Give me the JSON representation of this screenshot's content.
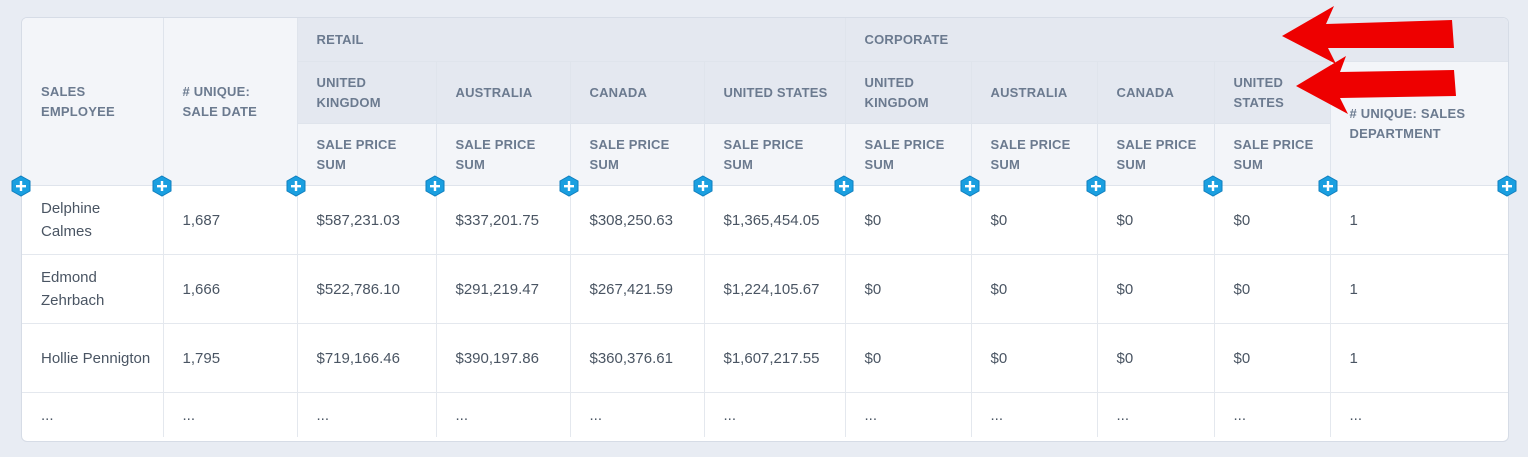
{
  "header": {
    "row_header_1": "SALES EMPLOYEE",
    "row_header_2": "# UNIQUE: SALE DATE",
    "group_retail": "RETAIL",
    "group_corporate": "CORPORATE",
    "countries": [
      "UNITED KINGDOM",
      "AUSTRALIA",
      "CANADA",
      "UNITED STATES",
      "UNITED KINGDOM",
      "AUSTRALIA",
      "CANADA",
      "UNITED STATES"
    ],
    "measure": "SALE PRICE SUM",
    "last_column": "# UNIQUE: SALES DEPARTMENT"
  },
  "rows": [
    {
      "employee": "Delphine Calmes",
      "unique": "1,687",
      "values": [
        "$587,231.03",
        "$337,201.75",
        "$308,250.63",
        "$1,365,454.05",
        "$0",
        "$0",
        "$0",
        "$0"
      ],
      "dept": "1"
    },
    {
      "employee": "Edmond Zehrbach",
      "unique": "1,666",
      "values": [
        "$522,786.10",
        "$291,219.47",
        "$267,421.59",
        "$1,224,105.67",
        "$0",
        "$0",
        "$0",
        "$0"
      ],
      "dept": "1"
    },
    {
      "employee": "Hollie Pennigton",
      "unique": "1,795",
      "values": [
        "$719,166.46",
        "$390,197.86",
        "$360,376.61",
        "$1,607,217.55",
        "$0",
        "$0",
        "$0",
        "$0"
      ],
      "dept": "1"
    }
  ],
  "ellipsis": "...",
  "colors": {
    "add_button": "#1a9fe0",
    "arrow": "#ee0000",
    "header_bg": "#f3f5f9"
  },
  "icons": {
    "add": "plus-hexagon-icon",
    "annotation": "red-arrow-icon"
  }
}
